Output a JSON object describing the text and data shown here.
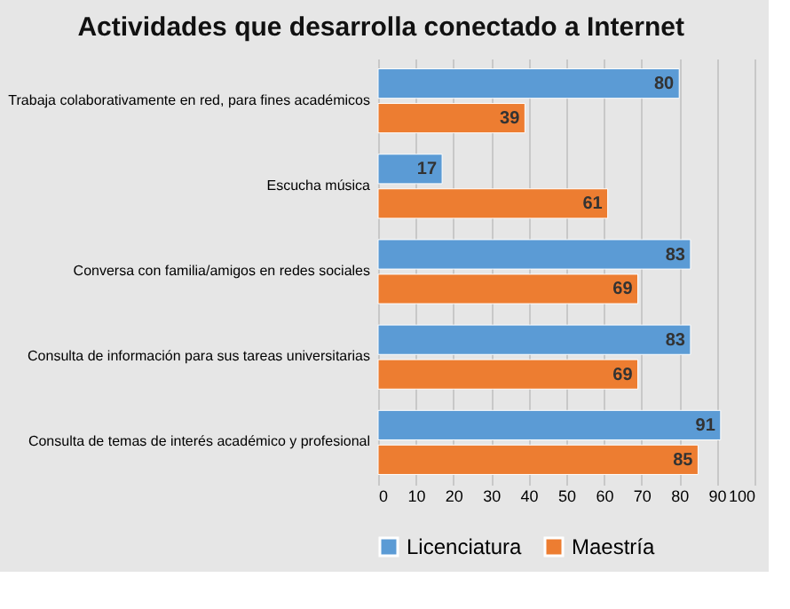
{
  "chart_data": {
    "type": "bar",
    "orientation": "horizontal",
    "title": "Actividades que desarrolla conectado a Internet",
    "categories": [
      "Trabaja colaborativamente en red, para fines académicos",
      "Escucha música",
      "Conversa con familia/amigos en redes sociales",
      "Consulta de información para sus tareas universitarias",
      "Consulta de temas de interés académico y profesional"
    ],
    "series": [
      {
        "name": "Licenciatura",
        "color": "#5b9bd5",
        "values": [
          80,
          17,
          83,
          83,
          91
        ]
      },
      {
        "name": "Maestría",
        "color": "#ed7d31",
        "values": [
          39,
          61,
          69,
          69,
          85
        ]
      }
    ],
    "xlim": [
      0,
      100
    ],
    "xticks": [
      0,
      10,
      20,
      30,
      40,
      50,
      60,
      70,
      80,
      90,
      100
    ],
    "grid": "x",
    "legend": "bottom",
    "data_labels": true
  }
}
